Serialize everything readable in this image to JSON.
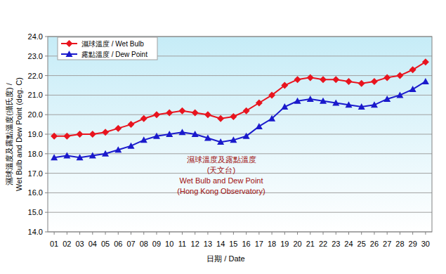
{
  "chart_data": {
    "type": "line",
    "y_label": [
      "濕球溫度及露點溫度(攝氏度) /",
      "Wet Bulb and Dew Point (deg. C)"
    ],
    "x_label": "日期 / Date",
    "annotations": [
      "濕球溫度及露點溫度",
      "(天文台)",
      "Wet Bulb and Dew Point",
      "(Hong Kong Observatory)"
    ],
    "categories": [
      "01",
      "02",
      "03",
      "04",
      "05",
      "06",
      "07",
      "08",
      "09",
      "10",
      "11",
      "12",
      "13",
      "14",
      "15",
      "16",
      "17",
      "18",
      "19",
      "20",
      "21",
      "22",
      "23",
      "24",
      "25",
      "26",
      "27",
      "28",
      "29",
      "30"
    ],
    "series": [
      {
        "name": "濕球溫度 / Wet Bulb",
        "color": "#e8141e",
        "marker": "diamond",
        "values": [
          18.9,
          18.9,
          19.0,
          19.0,
          19.1,
          19.3,
          19.5,
          19.8,
          20.0,
          20.1,
          20.2,
          20.1,
          20.0,
          19.8,
          19.9,
          20.2,
          20.6,
          21.0,
          21.5,
          21.8,
          21.9,
          21.8,
          21.8,
          21.7,
          21.6,
          21.7,
          21.9,
          22.0,
          22.3,
          22.7
        ]
      },
      {
        "name": "露點溫度 / Dew Point",
        "color": "#1a1acc",
        "marker": "triangle",
        "values": [
          17.8,
          17.9,
          17.8,
          17.9,
          18.0,
          18.2,
          18.4,
          18.7,
          18.9,
          19.0,
          19.1,
          19.0,
          18.8,
          18.6,
          18.7,
          18.9,
          19.4,
          19.8,
          20.4,
          20.7,
          20.8,
          20.7,
          20.6,
          20.5,
          20.4,
          20.5,
          20.8,
          21.0,
          21.3,
          21.7
        ]
      }
    ],
    "ylim": [
      14,
      24
    ],
    "yticks": [
      {
        "value": 14,
        "label": "14.0"
      },
      {
        "value": 15,
        "label": "15.0"
      },
      {
        "value": 16,
        "label": "16.0"
      },
      {
        "value": 17,
        "label": "17.0"
      },
      {
        "value": 18,
        "label": "18.0"
      },
      {
        "value": 19,
        "label": "19.0"
      },
      {
        "value": 20,
        "label": "20.0"
      },
      {
        "value": 21,
        "label": "21.0"
      },
      {
        "value": 22,
        "label": "22.0"
      },
      {
        "value": 23,
        "label": "23.0"
      },
      {
        "value": 24,
        "label": "24.0"
      }
    ],
    "grid": true,
    "legend": "top-left"
  }
}
